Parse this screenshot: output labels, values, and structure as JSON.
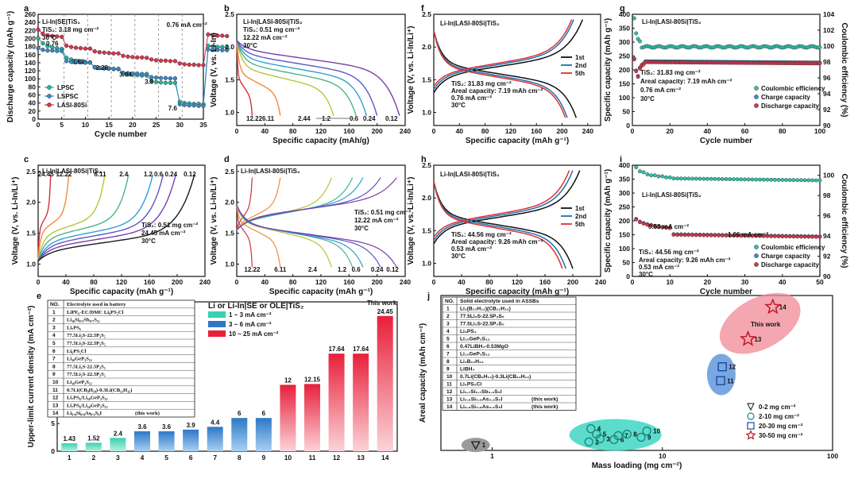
{
  "colors": {
    "lpsc": "#2bb3a2",
    "lspsc": "#3a86c8",
    "lasi": "#d8344b",
    "black": "#111111",
    "red": "#e03030",
    "blue": "#1f6fb0"
  },
  "panel_labels": [
    "a",
    "b",
    "c",
    "d",
    "e",
    "f",
    "g",
    "h",
    "i",
    "j"
  ],
  "chart_data": [
    {
      "id": "a",
      "type": "scatter",
      "xlabel": "Cycle number",
      "ylabel": "Discharge capacity (mAh g⁻¹)",
      "xlim": [
        0,
        35
      ],
      "ylim": [
        0,
        260
      ],
      "xticks": [
        0,
        5,
        10,
        15,
        20,
        25,
        30,
        35
      ],
      "yticks": [
        0,
        20,
        40,
        60,
        80,
        100,
        120,
        140,
        160,
        180,
        200,
        220,
        240,
        260
      ],
      "notes": [
        "Li-In|SE|TiS₂",
        "TiS₂: 3.18 mg cm⁻²",
        "30°C"
      ],
      "rate_labels": [
        {
          "text": "0.76",
          "x": 3,
          "y": 182
        },
        {
          "text": "1.52",
          "x": 8.5,
          "y": 137
        },
        {
          "text": "2.28",
          "x": 13.5,
          "y": 122
        },
        {
          "text": "3.04",
          "x": 18.5,
          "y": 105
        },
        {
          "text": "3.8",
          "x": 23.5,
          "y": 88
        },
        {
          "text": "7.6",
          "x": 28.5,
          "y": 22
        },
        {
          "text": "0.76 mA cm⁻²",
          "x": 31.5,
          "y": 228
        }
      ],
      "legend": [
        "LPSC",
        "LSPSC",
        "LASI-80Si"
      ],
      "series": [
        {
          "name": "LPSC",
          "values": [
            201,
            188,
            181,
            178,
            176,
            174,
            152,
            148,
            145,
            143,
            142,
            141,
            129,
            127,
            126,
            125,
            124,
            124,
            113,
            111,
            110,
            109,
            108,
            108,
            94,
            92,
            91,
            90,
            90,
            90,
            43,
            40,
            39,
            38,
            38,
            37,
            182,
            180,
            179,
            179,
            178
          ]
        },
        {
          "name": "LSPSC",
          "values": [
            176,
            172,
            170,
            170,
            169,
            169,
            144,
            142,
            141,
            141,
            140,
            140,
            128,
            127,
            126,
            126,
            125,
            125,
            115,
            114,
            113,
            113,
            112,
            112,
            104,
            103,
            102,
            102,
            101,
            101,
            37,
            35,
            34,
            34,
            33,
            33,
            173,
            172,
            172,
            171,
            171
          ]
        },
        {
          "name": "LASI-80Si",
          "values": [
            222,
            212,
            208,
            206,
            205,
            204,
            182,
            179,
            177,
            176,
            175,
            175,
            168,
            166,
            165,
            164,
            163,
            163,
            157,
            155,
            154,
            153,
            153,
            152,
            148,
            146,
            145,
            145,
            144,
            144,
            138,
            136,
            135,
            135,
            134,
            134,
            210,
            208,
            207,
            207,
            206
          ]
        }
      ]
    },
    {
      "id": "b",
      "type": "line",
      "xlabel": "Specific capacity (mAh/g)",
      "ylabel": "Voltage (V, vs. Li-In)",
      "xlim": [
        0,
        240
      ],
      "ylim": [
        0.8,
        2.5
      ],
      "xticks": [
        0,
        40,
        80,
        120,
        160,
        200,
        240
      ],
      "yticks": [
        1.0,
        1.5,
        2.0,
        2.5
      ],
      "notes": [
        "Li-In|LASI-80Si|TiS₂",
        "TiS₂: 0.51 mg cm⁻²",
        "12.22 mA cm⁻²",
        "30°C"
      ],
      "rates": [
        "12.22",
        "6.11",
        "2.44",
        "1.2",
        "0.6",
        "0.24",
        "0.12"
      ],
      "capacities": [
        22,
        62,
        138,
        170,
        185,
        200,
        232
      ]
    },
    {
      "id": "c",
      "type": "line",
      "xlabel": "Specific capacity (mAh g⁻¹)",
      "ylabel": "Voltage (V, vs. Li-In/Li⁺)",
      "xlim": [
        0,
        240
      ],
      "ylim": [
        0.8,
        2.6
      ],
      "xticks": [
        0,
        40,
        80,
        120,
        160,
        200,
        240
      ],
      "yticks": [
        1.0,
        1.5,
        2.0,
        2.5
      ],
      "notes": [
        "Li-In|LASI-80Si|TiS₂",
        "TiS₂: 0.51 mg cm⁻²",
        "24.45 mA cm⁻²",
        "30°C"
      ],
      "rates": [
        "24.45",
        "12.22",
        "6.11",
        "2.4",
        "1.2",
        "0.6",
        "0.24",
        "0.12"
      ],
      "capacities": [
        18,
        44,
        96,
        130,
        165,
        180,
        198,
        225
      ]
    },
    {
      "id": "d",
      "type": "line",
      "xlabel": "Specific capacity (mAh g⁻¹)",
      "ylabel": "Voltage (V, vs. Li-In/Li⁺)",
      "xlim": [
        0,
        240
      ],
      "ylim": [
        0.8,
        2.6
      ],
      "xticks": [
        0,
        40,
        80,
        120,
        160,
        200,
        240
      ],
      "yticks": [
        1.0,
        1.5,
        2.0,
        2.5
      ],
      "notes": [
        "Li-In|LASI-80Si|TiS₂",
        "TiS₂: 0.51 mg cm⁻²",
        "12.22 mA cm⁻²",
        "30°C"
      ],
      "rates": [
        "12.22",
        "6.11",
        "2.4",
        "1.2",
        "0.6",
        "0.24",
        "0.12"
      ],
      "capacities": [
        22,
        62,
        135,
        165,
        180,
        205,
        228
      ]
    },
    {
      "id": "e",
      "type": "bar",
      "xlabel": "",
      "ylabel": "Upper-limit current density (mA cm⁻²)",
      "title": "Li or Li-In|SE or OLE|TiS₂",
      "categories": [
        "1",
        "2",
        "3",
        "4",
        "5",
        "6",
        "7",
        "8",
        "9",
        "10",
        "11",
        "12",
        "13",
        "14"
      ],
      "values": [
        1.43,
        1.52,
        2.4,
        3.6,
        3.6,
        3.9,
        4.4,
        6,
        6,
        12,
        12.15,
        17.64,
        17.64,
        24.45
      ],
      "value_labels": [
        "1.43",
        "1.52",
        "2.4",
        "3.6",
        "3.6",
        "3.9",
        "4.4",
        "6",
        "6",
        "12",
        "12.15",
        "17.64",
        "17.64",
        "24.45"
      ],
      "ylim": [
        0,
        27
      ],
      "yticks": [
        0,
        5,
        10,
        15,
        20,
        25
      ],
      "highlight": "This work",
      "legend": [
        "1 ~ 3 mA cm⁻²",
        "3 ~ 6 mA cm⁻²",
        "10 ~ 25 mA cm⁻²"
      ],
      "table_header": [
        "NO.",
        "Electrolyte used in battery"
      ],
      "table_rows": [
        "LiPF₆-EC/DMC Li₆PS₅Cl",
        "Li₁₀Si₀.₃Sb₀.₇S₁₁",
        "Li₇PS₆",
        "77.5Li₂S-22.5P₂S₅",
        "77.5Li₂S-22.5P₂S₅",
        "Li₆PS₅Cl",
        "Li₁₀GeP₂S₁₂",
        "77.5Li₂S-22.5P₂S₅",
        "77.5Li₂S-22.5P₂S₅",
        "Li₁₀GeP₂S₁₂",
        "0.7Li(CB₉H₁₀)-0.3Li(CB₁₁H₁₂)",
        "Li₇PS₆/Li₁₀GeP₂S₁₂",
        "Li₇PS₆/Li₁₀GeP₂S₁₂",
        "Li₉.₈Si₀.₈As₀.₂S₆I"
      ],
      "this_work_tag": "(this work)"
    },
    {
      "id": "f",
      "type": "line",
      "xlabel": "Specific capacity (mAh g⁻¹)",
      "ylabel": "Voltage (V, vs. Li-In/Li⁺)",
      "xlim": [
        0,
        260
      ],
      "ylim": [
        0.8,
        2.5
      ],
      "xticks": [
        0,
        40,
        80,
        120,
        160,
        200,
        240
      ],
      "yticks": [
        1.0,
        1.5,
        2.0,
        2.5
      ],
      "notes": [
        "Li-In|LASI-80Si|TiS₂",
        "TiS₂: 31.83 mg cm⁻²",
        "Areal capacity: 7.19 mAh cm⁻²",
        "0.76 mA cm⁻²",
        "30°C"
      ],
      "legend": [
        "1st",
        "2nd",
        "5th"
      ],
      "capacities": [
        232,
        218,
        215
      ]
    },
    {
      "id": "g",
      "type": "scatter",
      "xlabel": "Cycle number",
      "ylabel": "Specific capacity (mAh g⁻¹)",
      "ylabel2": "Coulombic efficiency (%)",
      "xlim": [
        0,
        100
      ],
      "ylim": [
        0,
        400
      ],
      "ylim2": [
        90,
        104
      ],
      "xticks": [
        0,
        20,
        40,
        60,
        80,
        100
      ],
      "yticks": [
        0,
        50,
        100,
        150,
        200,
        250,
        300,
        350,
        400
      ],
      "yticks2": [
        90,
        92,
        94,
        96,
        98,
        100,
        102,
        104
      ],
      "notes": [
        "Li-In|LASI-80Si|TiS₂",
        "TiS₂: 31.83 mg cm⁻²",
        "Areal capacity: 7.19 mAh cm⁻²",
        "0.76 mA cm⁻²",
        "30°C"
      ],
      "legend": [
        "Coulombic efficiency",
        "Charge capacity",
        "Discharge capacity"
      ],
      "ce_start": [
        103.5,
        101.6,
        100.9,
        100.6
      ],
      "ce_plateau": 99.9,
      "capacity_start": [
        238,
        195,
        175,
        205,
        215,
        220
      ],
      "capacity_plateau": 228
    },
    {
      "id": "h",
      "type": "line",
      "xlabel": "Specific capacity (mAh g⁻¹)",
      "ylabel": "Voltage (V, vs. Li-In/Li⁺)",
      "xlim": [
        0,
        240
      ],
      "ylim": [
        0.8,
        2.5
      ],
      "xticks": [
        0,
        40,
        80,
        120,
        160,
        200,
        240
      ],
      "yticks": [
        1.0,
        1.5,
        2.0,
        2.5
      ],
      "notes": [
        "Li-In|LASI-80Si|TiS₂",
        "TiS₂: 44.56 mg cm⁻²",
        "Areal capacity: 9.26 mAh cm⁻²",
        "0.53 mA cm⁻²",
        "30°C"
      ],
      "legend": [
        "1st",
        "2nd",
        "5th"
      ],
      "capacities": [
        210,
        200,
        195
      ]
    },
    {
      "id": "i",
      "type": "scatter",
      "xlabel": "Cycle number",
      "ylabel": "Specific capacity (mAh g⁻¹)",
      "ylabel2": "Coulombic efficiency (%)",
      "xlim": [
        0,
        50
      ],
      "ylim": [
        0,
        400
      ],
      "ylim2": [
        90,
        101
      ],
      "xticks": [
        0,
        10,
        20,
        30,
        40,
        50
      ],
      "yticks": [
        0,
        50,
        100,
        150,
        200,
        250,
        300,
        350,
        400
      ],
      "yticks2": [
        90,
        92,
        94,
        96,
        98,
        100
      ],
      "notes": [
        "Li-In|LASI-80Si|TiS₂",
        "0.53 mA cm⁻²",
        "1.06 mA cm⁻²",
        "TiS₂: 44.56 mg cm⁻²",
        "Areal capacity: 9.26 mAh cm⁻²",
        "0.53 mA cm⁻²",
        "30°C"
      ],
      "legend": [
        "Coulombic efficiency",
        "Charge capacity",
        "Discharge capacity"
      ],
      "stage1_capacity": [
        205,
        195,
        190,
        186,
        183,
        180,
        178,
        176,
        175,
        174
      ],
      "stage2_capacity": 150,
      "stage2_end": 142,
      "ce_values": [
        100.8,
        100.4,
        100.3,
        100.1,
        100,
        100,
        99.9,
        99.9,
        99.8,
        99.8
      ]
    },
    {
      "id": "j",
      "type": "scatter",
      "xlabel": "Mass loading (mg cm⁻²)",
      "ylabel": "Areal capacity (mAh cm⁻²)",
      "xscale": "log",
      "xlim": [
        0.5,
        100
      ],
      "ylim": [
        0,
        10
      ],
      "xticks": [
        1,
        10,
        100
      ],
      "points": [
        {
          "n": "1",
          "x": 0.8,
          "y": 0.35,
          "group": "0-2"
        },
        {
          "n": "2",
          "x": 3.7,
          "y": 0.55,
          "group": "2-10"
        },
        {
          "n": "3",
          "x": 4.3,
          "y": 0.75,
          "group": "2-10"
        },
        {
          "n": "4",
          "x": 3.8,
          "y": 1.4,
          "group": "2-10"
        },
        {
          "n": "5",
          "x": 4.1,
          "y": 1.05,
          "group": "2-10"
        },
        {
          "n": "6",
          "x": 5.2,
          "y": 0.7,
          "group": "2-10"
        },
        {
          "n": "7",
          "x": 5.5,
          "y": 0.95,
          "group": "2-10"
        },
        {
          "n": "8",
          "x": 6.2,
          "y": 1.05,
          "group": "2-10"
        },
        {
          "n": "9",
          "x": 7.5,
          "y": 0.85,
          "group": "2-10"
        },
        {
          "n": "10",
          "x": 8.1,
          "y": 1.25,
          "group": "2-10"
        },
        {
          "n": "11",
          "x": 22,
          "y": 4.5,
          "group": "20-30"
        },
        {
          "n": "12",
          "x": 22.5,
          "y": 5.4,
          "group": "20-30"
        },
        {
          "n": "13",
          "x": 31.83,
          "y": 7.19,
          "group": "30-50"
        },
        {
          "n": "14",
          "x": 44.56,
          "y": 9.26,
          "group": "30-50"
        }
      ],
      "legend": [
        "0-2 mg cm⁻²",
        "2-10 mg cm⁻²",
        "20-30 mg cm⁻²",
        "30-50 mg cm⁻²"
      ],
      "highlight": "This work",
      "table_header": [
        "NO.",
        "Solid electrolyte used in ASSBs"
      ],
      "table_rows": [
        "Li₂(B₁₂H₁₂)(CB₁₁H₁₂)",
        "77.5Li₂S-22.5P₂S₅",
        "77.5Li₂S-22.5P₂S₅",
        "Li₃PS₄",
        "Li₁₀GeP₂S₁₂",
        "0.47LiBH₄-0.53MgO",
        "Li₁₀GeP₂S₁₂",
        "Li₂B₁₂H₁₂",
        "LiBH₄",
        "0.7Li(CB₉H₁₀)-0.3Li(CB₁₁H₁₂)",
        "Li₆PS₅Cl",
        "Li₆.₇Si₀.₇Sb₀.₃S₅I",
        "Li₆.₈Si₀.₈As₀.₂S₅I",
        "Li₆.₈Si₀.₈As₀.₂S₅I"
      ],
      "this_work_tag": "(this work)"
    }
  ]
}
